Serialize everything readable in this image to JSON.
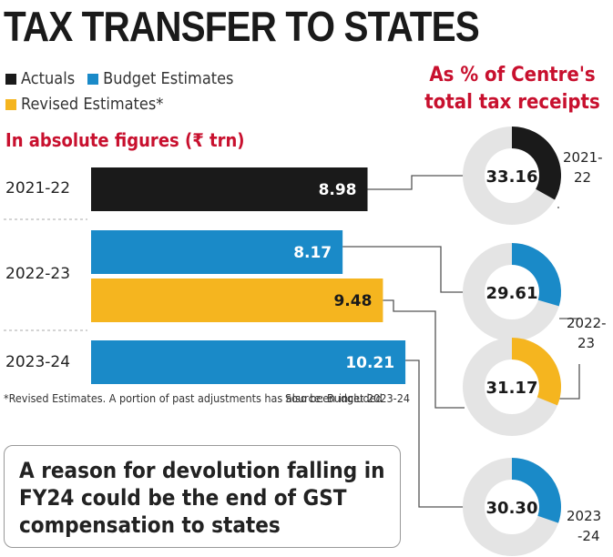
{
  "title": "TAX TRANSFER TO STATES",
  "legend": [
    {
      "label": "Actuals",
      "color": "#1a1a1a"
    },
    {
      "label": "Budget Estimates",
      "color": "#1a8ac8"
    },
    {
      "label": "Revised Estimates*",
      "color": "#f5b51f"
    }
  ],
  "colors": {
    "actuals": "#1a1a1a",
    "budget": "#1a8ac8",
    "revised": "#f5b51f",
    "accent": "#c8102e",
    "track": "#e4e4e4"
  },
  "footnote": "*Revised Estimates. A portion of past adjustments has also been included",
  "source": "Source: Budget 2023-24",
  "callout": "A reason for devolution falling in FY24 could be the end of GST compensation to states",
  "chart_data": [
    {
      "type": "bar",
      "orientation": "horizontal",
      "title": "In absolute figures (₹ trn)",
      "categories": [
        "2021-22",
        "2022-23",
        "2023-24"
      ],
      "bars": [
        {
          "category": "2021-22",
          "series": "Actuals",
          "value": 8.98,
          "label": "8.98"
        },
        {
          "category": "2022-23",
          "series": "Budget Estimates",
          "value": 8.17,
          "label": "8.17"
        },
        {
          "category": "2022-23",
          "series": "Revised Estimates*",
          "value": 9.48,
          "label": "9.48"
        },
        {
          "category": "2023-24",
          "series": "Budget Estimates",
          "value": 10.21,
          "label": "10.21"
        }
      ],
      "xlim": [
        0,
        11.5
      ]
    },
    {
      "type": "pie",
      "style": "donut",
      "title": "As % of Centre's total tax receipts",
      "slices": [
        {
          "year_line1": "2021-",
          "year_line2": "22",
          "series": "Actuals",
          "value": 33.16,
          "label": "33.16"
        },
        {
          "year_line1": "2022-",
          "year_line2": "23",
          "series": "Budget Estimates",
          "value": 29.61,
          "label": "29.61"
        },
        {
          "series": "Revised Estimates*",
          "value": 31.17,
          "label": "31.17"
        },
        {
          "year_line1": "2023",
          "year_line2": "-24",
          "series": "Budget Estimates",
          "value": 30.3,
          "label": "30.30"
        }
      ]
    }
  ]
}
